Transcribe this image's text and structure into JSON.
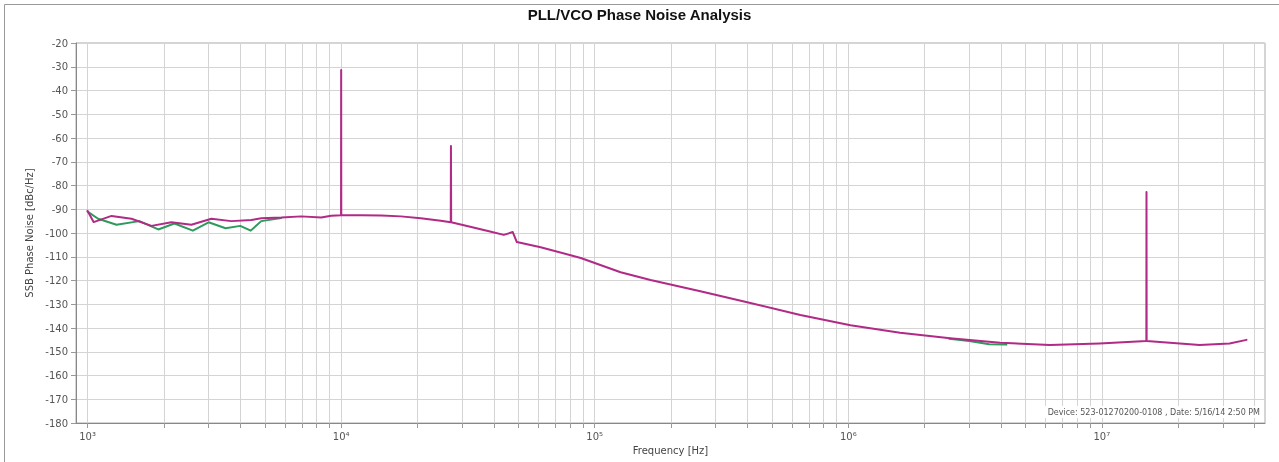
{
  "chart_data": {
    "type": "line",
    "title": "PLL/VCO Phase Noise Analysis",
    "xlabel": "Frequency [Hz]",
    "ylabel": "SSB Phase Noise [dBc/Hz]",
    "log": "x",
    "grid": true,
    "marker": "none",
    "line_style": "solid",
    "xlim": [
      900,
      44000000
    ],
    "ylim": [
      -180,
      -20
    ],
    "xticks": [
      {
        "value": 1000,
        "label": "10³"
      },
      {
        "value": 2000,
        "label": null
      },
      {
        "value": 3000,
        "label": null
      },
      {
        "value": 4000,
        "label": null
      },
      {
        "value": 5000,
        "label": null
      },
      {
        "value": 6000,
        "label": null
      },
      {
        "value": 7000,
        "label": null
      },
      {
        "value": 8000,
        "label": null
      },
      {
        "value": 9000,
        "label": null
      },
      {
        "value": 10000,
        "label": "10⁴"
      },
      {
        "value": 20000,
        "label": null
      },
      {
        "value": 30000,
        "label": null
      },
      {
        "value": 40000,
        "label": null
      },
      {
        "value": 50000,
        "label": null
      },
      {
        "value": 60000,
        "label": null
      },
      {
        "value": 70000,
        "label": null
      },
      {
        "value": 80000,
        "label": null
      },
      {
        "value": 90000,
        "label": null
      },
      {
        "value": 100000,
        "label": "10⁵"
      },
      {
        "value": 200000,
        "label": null
      },
      {
        "value": 300000,
        "label": null
      },
      {
        "value": 400000,
        "label": null
      },
      {
        "value": 500000,
        "label": null
      },
      {
        "value": 600000,
        "label": null
      },
      {
        "value": 700000,
        "label": null
      },
      {
        "value": 800000,
        "label": null
      },
      {
        "value": 900000,
        "label": null
      },
      {
        "value": 1000000,
        "label": "10⁶"
      },
      {
        "value": 2000000,
        "label": null
      },
      {
        "value": 3000000,
        "label": null
      },
      {
        "value": 4000000,
        "label": null
      },
      {
        "value": 5000000,
        "label": null
      },
      {
        "value": 6000000,
        "label": null
      },
      {
        "value": 7000000,
        "label": null
      },
      {
        "value": 8000000,
        "label": null
      },
      {
        "value": 9000000,
        "label": null
      },
      {
        "value": 10000000,
        "label": "10⁷"
      },
      {
        "value": 20000000,
        "label": null
      },
      {
        "value": 30000000,
        "label": null
      },
      {
        "value": 40000000,
        "label": null
      }
    ],
    "yticks": [
      -180,
      -170,
      -160,
      -150,
      -140,
      -130,
      -120,
      -110,
      -100,
      -90,
      -80,
      -70,
      -60,
      -50,
      -40,
      -30,
      -20
    ],
    "annotations": [
      "Device: 523-01270200-0108 , Date: 5/16/14 2:50 PM"
    ],
    "series": [
      {
        "color": "#2e9a5c",
        "x": [
          1000,
          1100,
          1300,
          1600,
          1900,
          2200,
          2600,
          3000,
          3500,
          4000,
          4400,
          4840,
          5800,
          7000,
          2500000,
          3000000,
          3600000,
          4200000
        ],
        "values": [
          -91,
          -94,
          -96.5,
          -95,
          -98.5,
          -96,
          -99,
          -95.5,
          -98,
          -97,
          -99,
          -95,
          -93.7,
          null,
          -144.5,
          -145.5,
          -146.8,
          -147
        ]
      },
      {
        "color": "#b02a86",
        "x": [
          1000,
          1056,
          1243,
          1490,
          1786,
          2140,
          2566,
          3077,
          3690,
          4420,
          4840,
          5810,
          6960,
          8340,
          9130,
          9990,
          10000,
          10010,
          12000,
          14400,
          17200,
          20600,
          24700,
          27050,
          27100,
          27150,
          32600,
          39000,
          43800,
          47500,
          49300,
          61200,
          88100,
          126500,
          166000,
          261000,
          411000,
          647000,
          1020000,
          1600000,
          2520000,
          3970000,
          6240000,
          9800000,
          14980000,
          15000000,
          15020000,
          20300000,
          24300000,
          31900000,
          37200000
        ],
        "values": [
          -90.7,
          -95.4,
          -92.8,
          -94,
          -97,
          -95.5,
          -96.5,
          -94,
          -95,
          -94.5,
          -93.8,
          -93.5,
          -93,
          -93.5,
          -92.7,
          -92.5,
          -31.4,
          -92.5,
          -92.5,
          -92.6,
          -93,
          -93.8,
          -94.8,
          -95.5,
          -63.4,
          -95.5,
          -97.5,
          -99.5,
          -100.8,
          -99.6,
          -103.8,
          -106,
          -110.5,
          -116.5,
          -119.8,
          -124.5,
          -129.5,
          -134.5,
          -138.8,
          -142,
          -144.3,
          -146.2,
          -147.2,
          -146.5,
          -145.5,
          -82.7,
          -145.5,
          -146.5,
          -147.2,
          -146.5,
          -145
        ]
      }
    ]
  }
}
